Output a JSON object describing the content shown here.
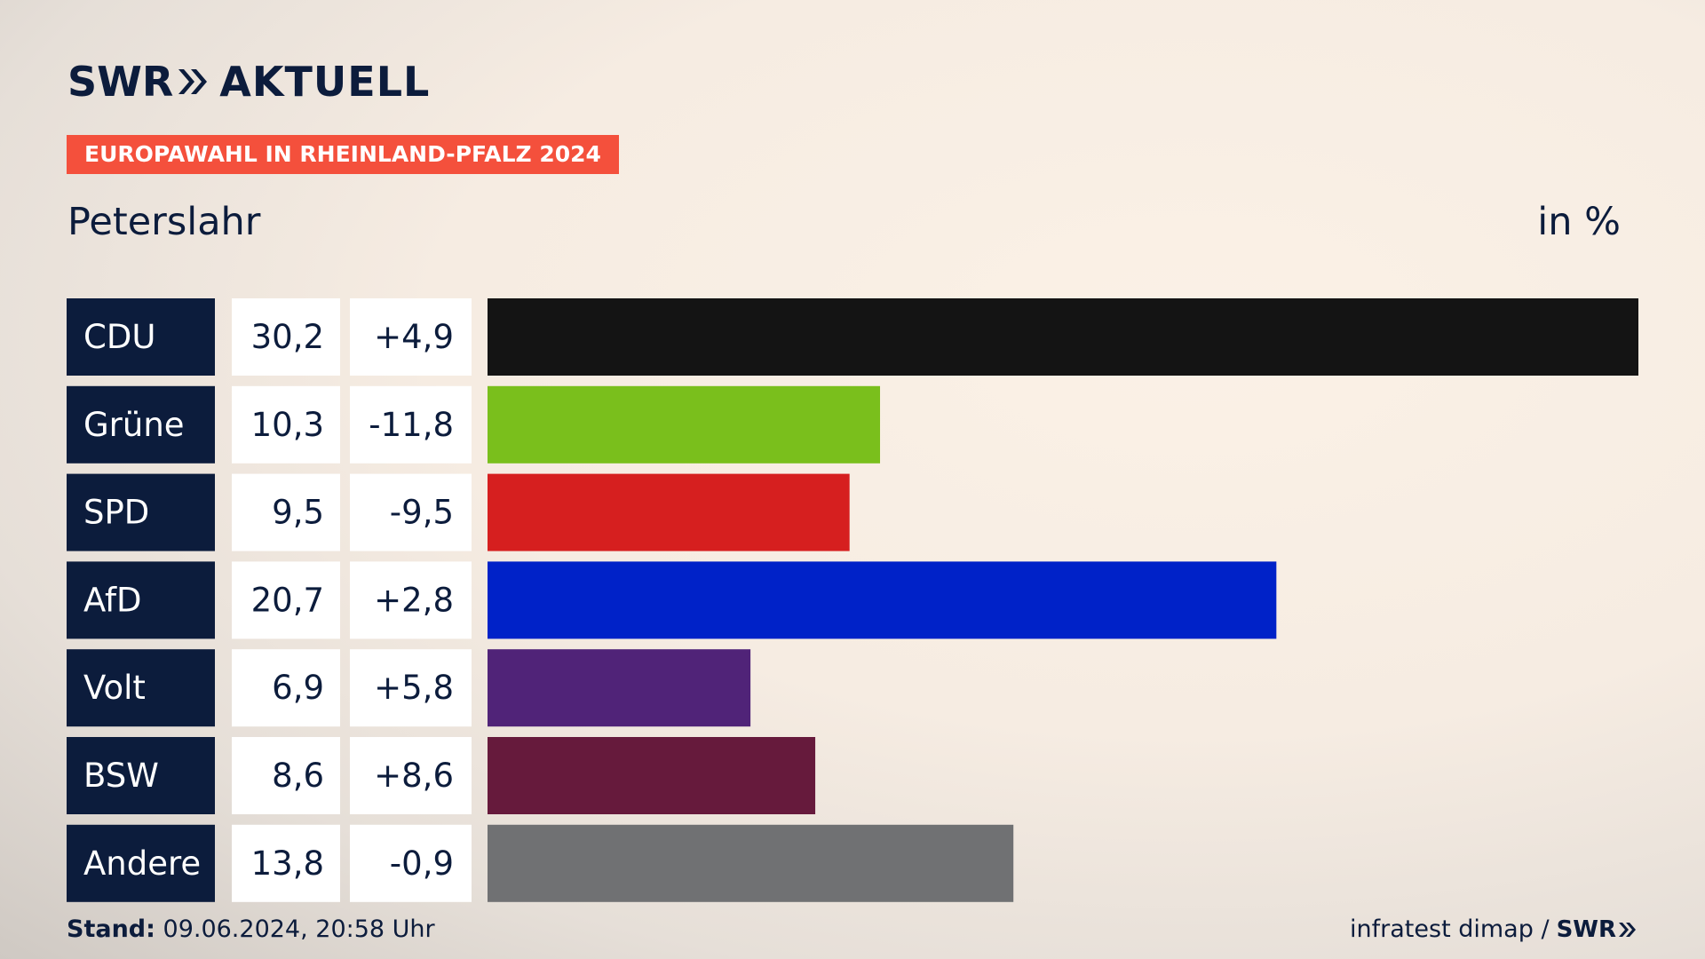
{
  "header": {
    "logo_left": "SWR",
    "logo_right": "AKTUELL",
    "tag": "EUROPAWAHL IN RHEINLAND-PFALZ 2024",
    "region": "Peterslahr",
    "unit": "in %"
  },
  "footer": {
    "stand_label": "Stand:",
    "stand_value": "09.06.2024, 20:58 Uhr",
    "source": "infratest dimap /",
    "source_logo": "SWR"
  },
  "colors": {
    "navy": "#0c1c3c",
    "tag": "#f4503c"
  },
  "chart_data": {
    "type": "bar",
    "orientation": "horizontal",
    "categories": [
      "CDU",
      "Grüne",
      "SPD",
      "AfD",
      "Volt",
      "BSW",
      "Andere"
    ],
    "values": [
      30.2,
      10.3,
      9.5,
      20.7,
      6.9,
      8.6,
      13.8
    ],
    "value_labels": [
      "30,2",
      "10,3",
      "9,5",
      "20,7",
      "6,9",
      "8,6",
      "13,8"
    ],
    "change_labels": [
      "+4,9",
      "-11,8",
      "-9,5",
      "+2,8",
      "+5,8",
      "+8,6",
      "-0,9"
    ],
    "changes": [
      4.9,
      -11.8,
      -9.5,
      2.8,
      5.8,
      8.6,
      -0.9
    ],
    "bar_colors": [
      "#141414",
      "#7abf1c",
      "#d61f1f",
      "#0022c8",
      "#502378",
      "#661a3c",
      "#707173"
    ],
    "xlim": [
      0,
      30.2
    ],
    "grid": false,
    "legend": "none"
  }
}
